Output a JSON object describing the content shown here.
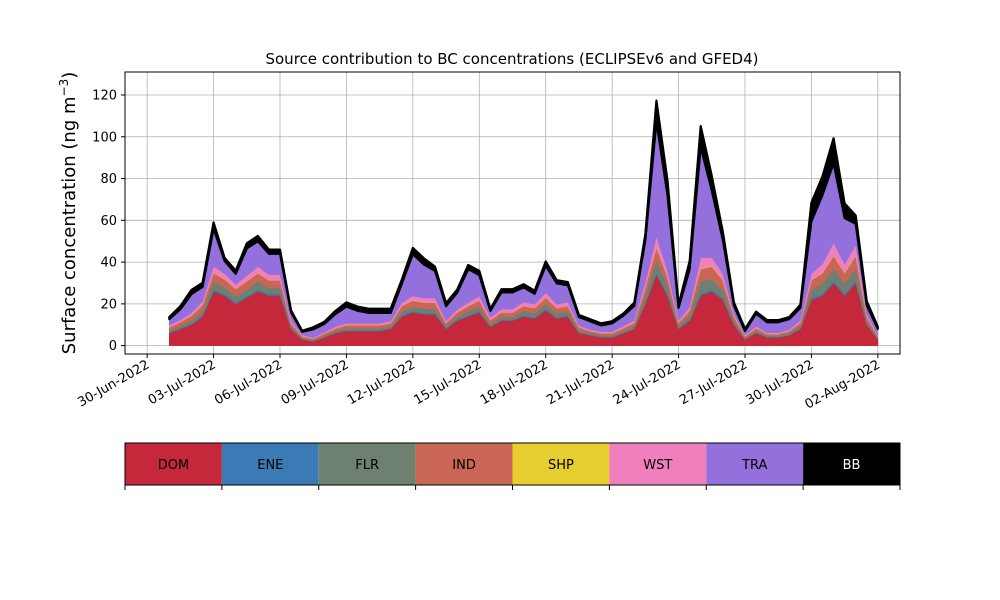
{
  "chart_data": {
    "type": "area",
    "stacked": true,
    "title": "Source contribution to BC concentrations (ECLIPSEv6 and GFED4)",
    "ylabel": "Surface concentration (ng m",
    "ylabel_sup": "−3",
    "ylabel_close": ")",
    "xlabel": "",
    "xlim": [
      "2022-06-29",
      "2022-08-03"
    ],
    "ylim": [
      -4,
      131
    ],
    "yticks": [
      0,
      20,
      40,
      60,
      80,
      100,
      120
    ],
    "xticks": [
      "30-Jun-2022",
      "03-Jul-2022",
      "06-Jul-2022",
      "09-Jul-2022",
      "12-Jul-2022",
      "15-Jul-2022",
      "18-Jul-2022",
      "21-Jul-2022",
      "24-Jul-2022",
      "27-Jul-2022",
      "30-Jul-2022",
      "02-Aug-2022"
    ],
    "grid": true,
    "legend": "colorbar-below",
    "x": [
      "2022-07-01",
      "2022-07-01 12:00",
      "2022-07-02",
      "2022-07-02 12:00",
      "2022-07-03",
      "2022-07-03 12:00",
      "2022-07-04",
      "2022-07-04 12:00",
      "2022-07-05",
      "2022-07-05 12:00",
      "2022-07-06",
      "2022-07-06 12:00",
      "2022-07-07",
      "2022-07-07 12:00",
      "2022-07-08",
      "2022-07-08 12:00",
      "2022-07-09",
      "2022-07-09 12:00",
      "2022-07-10",
      "2022-07-10 12:00",
      "2022-07-11",
      "2022-07-11 12:00",
      "2022-07-12",
      "2022-07-12 12:00",
      "2022-07-13",
      "2022-07-13 12:00",
      "2022-07-14",
      "2022-07-14 12:00",
      "2022-07-15",
      "2022-07-15 12:00",
      "2022-07-16",
      "2022-07-16 12:00",
      "2022-07-17",
      "2022-07-17 12:00",
      "2022-07-18",
      "2022-07-18 12:00",
      "2022-07-19",
      "2022-07-19 12:00",
      "2022-07-20",
      "2022-07-20 12:00",
      "2022-07-21",
      "2022-07-21 12:00",
      "2022-07-22",
      "2022-07-22 12:00",
      "2022-07-23",
      "2022-07-23 12:00",
      "2022-07-24",
      "2022-07-24 12:00",
      "2022-07-25",
      "2022-07-25 12:00",
      "2022-07-26",
      "2022-07-26 12:00",
      "2022-07-27",
      "2022-07-27 12:00",
      "2022-07-28",
      "2022-07-28 12:00",
      "2022-07-29",
      "2022-07-29 12:00",
      "2022-07-30",
      "2022-07-30 12:00",
      "2022-07-31",
      "2022-07-31 12:00",
      "2022-08-01",
      "2022-08-01 12:00",
      "2022-08-02"
    ],
    "series": [
      {
        "name": "DOM",
        "color": "#c4283a",
        "values": [
          6,
          8,
          10,
          14,
          26,
          24,
          20,
          23,
          26,
          24,
          24,
          8,
          3,
          2,
          4,
          6,
          7,
          7,
          7,
          7,
          8,
          14,
          16,
          15,
          15,
          8,
          12,
          14,
          16,
          9,
          12,
          12,
          14,
          13,
          17,
          13,
          14,
          6,
          5,
          4,
          4,
          6,
          8,
          20,
          34,
          24,
          8,
          12,
          24,
          26,
          22,
          10,
          3,
          6,
          4,
          4,
          5,
          8,
          22,
          24,
          30,
          24,
          30,
          10,
          3
        ]
      },
      {
        "name": "ENE",
        "color": "#3a7ab5",
        "values": [
          0.3,
          0.3,
          0.4,
          0.5,
          0.8,
          0.8,
          0.7,
          0.8,
          0.8,
          0.8,
          0.8,
          0.3,
          0.2,
          0.2,
          0.2,
          0.3,
          0.3,
          0.3,
          0.3,
          0.3,
          0.3,
          0.5,
          0.6,
          0.6,
          0.6,
          0.3,
          0.4,
          0.5,
          0.6,
          0.3,
          0.4,
          0.4,
          0.5,
          0.5,
          0.6,
          0.5,
          0.5,
          0.3,
          0.2,
          0.2,
          0.2,
          0.2,
          0.3,
          0.7,
          1,
          0.8,
          0.3,
          0.4,
          0.8,
          0.9,
          0.8,
          0.4,
          0.2,
          0.2,
          0.2,
          0.2,
          0.2,
          0.3,
          0.8,
          0.8,
          1,
          0.8,
          1,
          0.4,
          0.2
        ]
      },
      {
        "name": "FLR",
        "color": "#6e8070",
        "values": [
          1,
          1,
          1.5,
          2,
          4,
          3,
          3,
          3,
          4,
          3,
          3,
          1,
          0.5,
          0.5,
          0.6,
          0.8,
          1,
          1,
          1,
          1,
          1,
          2,
          2,
          2,
          2,
          1,
          1.5,
          2,
          2,
          1,
          1.5,
          1.5,
          2,
          2,
          2.5,
          2,
          2,
          1,
          0.8,
          0.8,
          0.8,
          1,
          1.2,
          3,
          6,
          4,
          1.2,
          2,
          6,
          5,
          4,
          1.5,
          0.5,
          1,
          0.6,
          0.6,
          0.8,
          1.2,
          4,
          5,
          6,
          5,
          6,
          1.5,
          0.5
        ]
      },
      {
        "name": "IND",
        "color": "#c96655",
        "values": [
          1.5,
          2,
          2.5,
          3,
          4,
          4,
          3.5,
          4,
          4,
          3.5,
          3.5,
          1.5,
          0.8,
          0.6,
          1,
          1.2,
          1.5,
          1.5,
          1.5,
          1.5,
          1.5,
          2.5,
          3,
          3,
          3,
          1.5,
          2,
          2.5,
          3,
          2,
          2,
          2,
          2.5,
          2.5,
          3,
          2.5,
          2.5,
          1.5,
          1,
          1,
          1,
          1.2,
          1.5,
          4,
          6,
          4,
          1.5,
          2.5,
          6,
          6,
          4.5,
          2,
          0.8,
          1.2,
          0.8,
          0.8,
          1,
          1.5,
          4.5,
          5,
          6,
          5,
          6,
          2,
          0.8
        ]
      },
      {
        "name": "SHP",
        "color": "#e6ce2e",
        "values": [
          0.1,
          0.1,
          0.1,
          0.1,
          0.2,
          0.2,
          0.2,
          0.2,
          0.2,
          0.2,
          0.2,
          0.1,
          0.1,
          0.1,
          0.1,
          0.1,
          0.1,
          0.1,
          0.1,
          0.1,
          0.1,
          0.1,
          0.2,
          0.2,
          0.2,
          0.1,
          0.1,
          0.1,
          0.2,
          0.1,
          0.1,
          0.1,
          0.1,
          0.1,
          0.2,
          0.1,
          0.1,
          0.1,
          0.1,
          0.1,
          0.1,
          0.1,
          0.1,
          0.2,
          0.3,
          0.2,
          0.1,
          0.1,
          0.3,
          0.3,
          0.2,
          0.1,
          0.1,
          0.1,
          0.1,
          0.1,
          0.1,
          0.1,
          0.2,
          0.3,
          0.3,
          0.3,
          0.3,
          0.1,
          0.1
        ]
      },
      {
        "name": "WST",
        "color": "#f07fbd",
        "values": [
          0.8,
          1,
          1.2,
          1.5,
          3,
          2.5,
          2,
          2.5,
          3,
          2.5,
          2.5,
          1,
          0.5,
          0.4,
          0.5,
          0.7,
          0.8,
          0.8,
          0.8,
          0.8,
          0.8,
          1.5,
          2,
          2,
          2,
          1,
          1.3,
          1.5,
          2,
          1.2,
          1.5,
          1.5,
          1.8,
          1.7,
          2,
          1.7,
          1.8,
          0.8,
          0.6,
          0.6,
          0.6,
          0.8,
          1,
          2.5,
          5,
          3,
          1,
          1.5,
          5,
          4,
          3,
          1.2,
          0.4,
          0.8,
          0.5,
          0.5,
          0.6,
          1,
          3,
          4,
          6,
          4,
          5,
          1.2,
          0.4
        ]
      },
      {
        "name": "TRA",
        "color": "#9370db",
        "values": [
          3,
          5,
          9,
          7,
          18,
          6,
          5,
          13,
          12,
          10,
          10,
          4,
          1.5,
          4,
          4,
          6,
          8,
          6,
          5,
          5,
          4,
          9,
          20,
          16,
          13,
          7,
          8,
          16,
          10,
          3,
          8,
          8,
          7,
          5,
          13,
          10,
          8,
          4,
          4,
          3,
          4,
          5,
          7,
          20,
          55,
          36,
          6,
          18,
          53,
          32,
          16,
          4,
          2,
          6,
          5,
          5,
          5,
          6,
          25,
          33,
          38,
          22,
          10,
          4,
          3
        ]
      },
      {
        "name": "BB",
        "color": "#000000",
        "values": [
          1,
          1.5,
          2,
          2,
          3,
          1.5,
          1.5,
          2.5,
          2.5,
          2,
          2,
          1,
          0.5,
          1,
          1,
          1.5,
          2,
          2,
          2,
          2,
          2,
          2,
          3,
          3,
          2,
          1.5,
          1.5,
          2,
          2,
          1,
          1.5,
          1.5,
          1.5,
          1.5,
          2,
          1.5,
          1.5,
          1,
          1,
          1,
          1,
          1,
          1.5,
          3,
          10,
          7,
          1.5,
          4,
          10,
          7,
          4,
          1.5,
          1,
          1,
          1,
          1,
          1,
          1.5,
          9,
          9,
          12,
          7,
          4,
          2,
          1
        ]
      }
    ]
  }
}
